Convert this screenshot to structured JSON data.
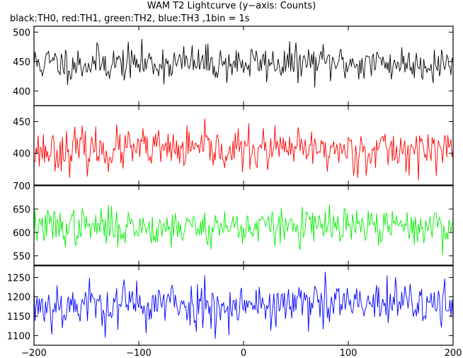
{
  "title": "WAM T2 Lightcurve (y−axis: Counts)",
  "subtitle": "black:TH0, red:TH1, green:TH2, blue:TH3 ,1bin = 1s",
  "chart_data": {
    "type": "line",
    "x": {
      "min": -200,
      "max": 200,
      "step": 1,
      "ticks": [
        -200,
        -100,
        0,
        100,
        200
      ]
    },
    "series": [
      {
        "name": "TH0",
        "color": "#000000",
        "mean": 447,
        "sd": 17,
        "seed": 11,
        "ylim": [
          375,
          510
        ],
        "ticks": [
          400,
          450,
          500
        ]
      },
      {
        "name": "TH1",
        "color": "#ff0000",
        "mean": 405,
        "sd": 18,
        "seed": 23,
        "ylim": [
          350,
          475
        ],
        "ticks": [
          400,
          450
        ]
      },
      {
        "name": "TH2",
        "color": "#00ee00",
        "mean": 612,
        "sd": 22,
        "seed": 37,
        "ylim": [
          530,
          700
        ],
        "ticks": [
          550,
          600,
          650,
          700
        ]
      },
      {
        "name": "TH3",
        "color": "#0000ff",
        "mean": 1180,
        "sd": 35,
        "seed": 53,
        "ylim": [
          1075,
          1280
        ],
        "ticks": [
          1100,
          1150,
          1200,
          1250
        ]
      }
    ]
  }
}
